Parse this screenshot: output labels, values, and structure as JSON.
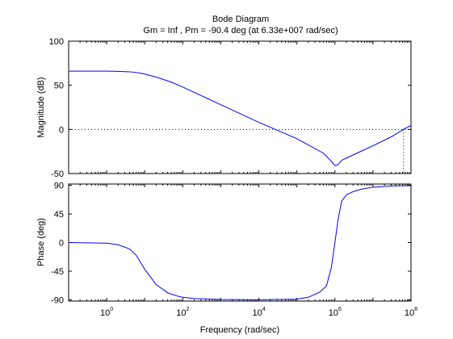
{
  "chart_data": {
    "type": "line",
    "title": "Bode Diagram",
    "subtitle": "Gm = Inf ,  Pm = -90.4 deg (at 6.33e+007 rad/sec)",
    "xlabel": "Frequency  (rad/sec)",
    "xscale": "log",
    "xlim": [
      0.1,
      100000000
    ],
    "xticks": [
      1,
      100,
      10000,
      1000000,
      100000000
    ],
    "xtick_labels": [
      {
        "base": "10",
        "exp": "0"
      },
      {
        "base": "10",
        "exp": "2"
      },
      {
        "base": "10",
        "exp": "4"
      },
      {
        "base": "10",
        "exp": "6"
      },
      {
        "base": "10",
        "exp": "8"
      }
    ],
    "grid": false,
    "line_color": "#0000ff",
    "subplots": [
      {
        "id": "magnitude",
        "ylabel": "Magnitude (dB)",
        "ylim": [
          -50,
          100
        ],
        "yticks": [
          -50,
          0,
          50,
          100
        ],
        "ytick_labels": [
          "-50",
          "0",
          "50",
          "100"
        ],
        "series": [
          {
            "x": [
              0.1,
              1,
              2,
              4,
              6,
              8,
              10,
              20,
              50,
              100,
              1000,
              10000,
              100000,
              500000,
              800000,
              1000000,
              1200000,
              1500000,
              2000000,
              5000000,
              10000000,
              30000000,
              63300000,
              100000000
            ],
            "values": [
              66,
              66,
              65.8,
              65.3,
              64.5,
              63.5,
              62.7,
              59.3,
              53.6,
              48,
              28,
              8,
              -10.5,
              -27,
              -36,
              -41,
              -40,
              -35,
              -32.5,
              -24.5,
              -18.5,
              -8.5,
              0,
              4.5
            ]
          }
        ],
        "reference_line": {
          "y": 0,
          "style": "dotted"
        },
        "crossover_marker": {
          "x": 63300000,
          "style": "dotted"
        }
      },
      {
        "id": "phase",
        "ylabel": "Phase (deg)",
        "ylim": [
          -92,
          92
        ],
        "yticks": [
          -90,
          -45,
          0,
          45,
          90
        ],
        "ytick_labels": [
          "-90",
          "-45",
          "0",
          "45",
          "90"
        ],
        "series": [
          {
            "x": [
              0.1,
              1,
              2,
              4,
              6,
              10,
              20,
              40,
              70,
              100,
              200,
              1000,
              10000,
              100000,
              200000,
              400000,
              600000,
              800000,
              1000000,
              1200000,
              1500000,
              2000000,
              3000000,
              5000000,
              10000000,
              30000000,
              100000000
            ],
            "values": [
              0,
              -1,
              -3.5,
              -10,
              -20,
              -42,
              -66,
              -79,
              -84,
              -86,
              -88,
              -89.5,
              -90,
              -89,
              -86,
              -78,
              -68,
              -40,
              0,
              35,
              65,
              75,
              80,
              84,
              87,
              89,
              89.5
            ]
          }
        ],
        "crossover_marker": {
          "x": 63300000,
          "style": "dotted"
        }
      }
    ]
  }
}
